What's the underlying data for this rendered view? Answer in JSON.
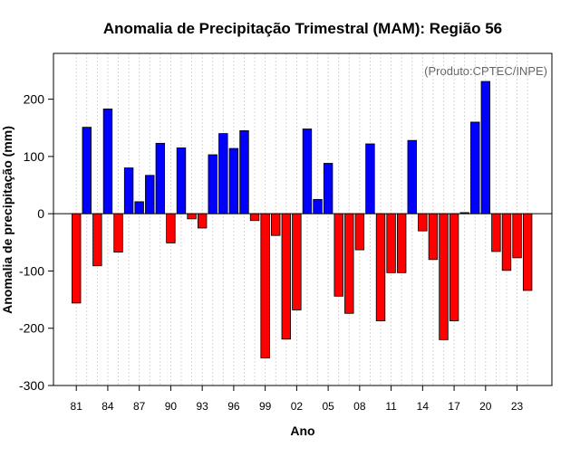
{
  "chart_data": {
    "type": "bar",
    "title": "Anomalia de Precipitação Trimestral (MAM): Região 56",
    "xlabel": "Ano",
    "ylabel": "Anomalia de precipitação (mm)",
    "credit": "(Produto:CPTEC/INPE)",
    "ylim": [
      -300,
      280
    ],
    "yticks": [
      -300,
      -200,
      -100,
      0,
      100,
      200
    ],
    "grid": true,
    "positive_color": "#0000ff",
    "negative_color": "#ff0000",
    "categories": [
      "81",
      "82",
      "83",
      "84",
      "85",
      "86",
      "87",
      "88",
      "89",
      "90",
      "91",
      "92",
      "93",
      "94",
      "95",
      "96",
      "97",
      "98",
      "99",
      "00",
      "01",
      "02",
      "03",
      "04",
      "05",
      "06",
      "07",
      "08",
      "09",
      "10",
      "11",
      "12",
      "13",
      "14",
      "15",
      "16",
      "17",
      "18",
      "19",
      "20",
      "21",
      "22",
      "23",
      "24"
    ],
    "xtick_labels": [
      "81",
      "84",
      "87",
      "90",
      "93",
      "96",
      "99",
      "02",
      "05",
      "08",
      "11",
      "14",
      "17",
      "20",
      "23"
    ],
    "values": [
      -156,
      151,
      -91,
      183,
      -67,
      80,
      21,
      67,
      123,
      -51,
      115,
      -9,
      -25,
      103,
      140,
      114,
      145,
      -12,
      -252,
      -38,
      -219,
      -168,
      148,
      25,
      88,
      -144,
      -174,
      -63,
      122,
      -187,
      -103,
      -103,
      128,
      -30,
      -80,
      -220,
      -187,
      2,
      160,
      231,
      -66,
      -99,
      -77,
      -134
    ]
  }
}
